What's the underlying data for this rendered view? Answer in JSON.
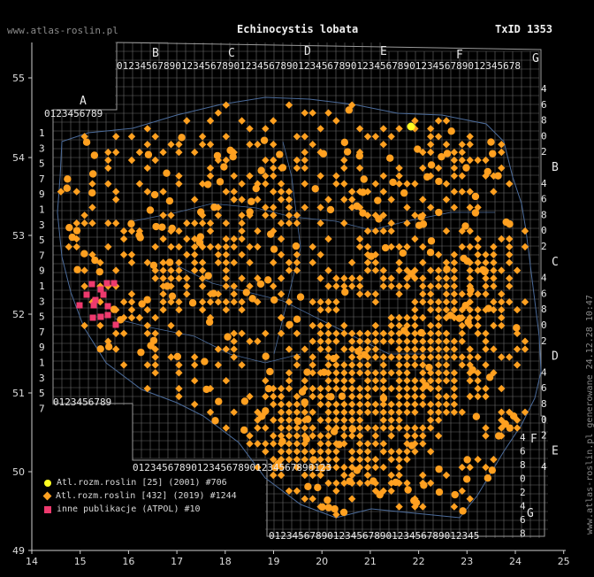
{
  "header": {
    "site": "www.atlas-roslin.pl",
    "species": "Echinocystis lobata",
    "taxid": "TxID 1353"
  },
  "generated": "www.atlas-roslin.pl generowane 24.12.28 10:47",
  "axes": {
    "x_labels": [
      "14",
      "15",
      "16",
      "17",
      "18",
      "19",
      "20",
      "21",
      "22",
      "23",
      "24",
      "25"
    ],
    "y_labels": [
      "55",
      "54",
      "53",
      "52",
      "51",
      "50",
      "49"
    ],
    "col_letters": [
      "A",
      "B",
      "C",
      "D",
      "E",
      "F",
      "G"
    ],
    "row_letters": [
      "B",
      "C",
      "D",
      "E",
      "F",
      "G"
    ],
    "digits": "0123456789"
  },
  "legend": [
    {
      "label": "Atl.rozm.roslin [25] (2001) #706",
      "color": "#ffff22",
      "symbol": "circle"
    },
    {
      "label": "Atl.rozm.roslin [432] (2019) #1244",
      "color": "#ffa020",
      "symbol": "diamond"
    },
    {
      "label": "inne publikacje (ATPOL) #10",
      "color": "#ee3a6e",
      "symbol": "square"
    }
  ],
  "colors": {
    "grid": "#6a6a6a",
    "frame": "#cfcfcf",
    "background": "#000000"
  }
}
